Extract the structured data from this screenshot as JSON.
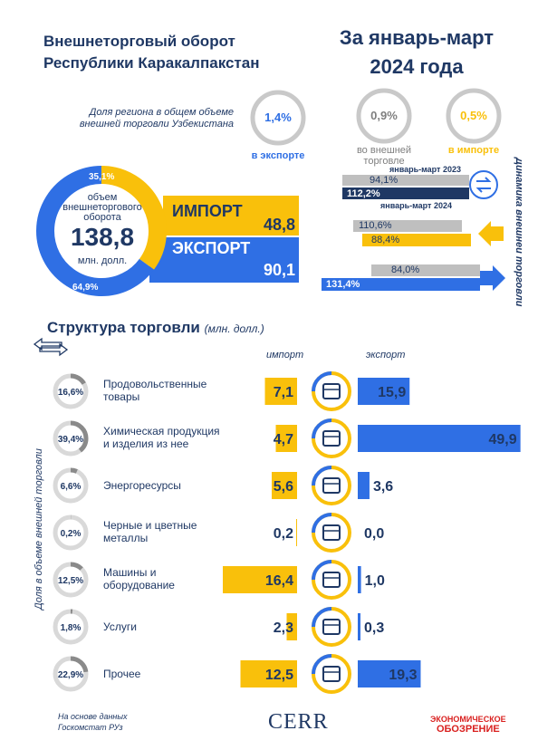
{
  "header": {
    "title_line1": "Внешнеторговый оборот",
    "title_line2": "Республики Каракалпакстан",
    "period_line1": "За январь-март",
    "period_line2": "2024 года"
  },
  "share": {
    "label_line1": "Доля региона в общем объеме",
    "label_line2": "внешней торговли Узбекистана",
    "export_value": "1,4%",
    "export_caption": "в экспорте",
    "trade_value": "0,9%",
    "trade_caption_line1": "во внешней",
    "trade_caption_line2": "торговле",
    "import_value": "0,5%",
    "import_caption": "в импорте"
  },
  "summary": {
    "donut_caption_line1": "объем",
    "donut_caption_line2": "внешнеторгового",
    "donut_caption_line3": "оборота",
    "total": "138,8",
    "unit": "млн. долл.",
    "import_share": "35,1%",
    "export_share": "64,9%",
    "import_label": "ИМПОРТ",
    "import_value": "48,8",
    "export_label": "ЭКСПОРТ",
    "export_value": "90,1"
  },
  "dynamics": {
    "vertical_label": "Динамика внешней торговли",
    "legend_2023": "январь-март 2023",
    "legend_2024": "январь-март 2024",
    "trade_2023": "94,1%",
    "trade_2024": "112,2%",
    "import_2023": "110,6%",
    "import_2024": "88,4%",
    "export_2023": "84,0%",
    "export_2024": "131,4%"
  },
  "structure": {
    "title": "Структура торговли",
    "unit": "(млн. долл.)",
    "col_import": "импорт",
    "col_export": "экспорт",
    "side_label": "Доля в объеме  внешней торговли"
  },
  "chart_data": {
    "type": "bar",
    "title": "Структура торговли",
    "unit": "млн. долл.",
    "categories": [
      {
        "line1": "Продовольственные",
        "line2": "товары",
        "share": "16,6%",
        "share_value": 16.6,
        "icon": "food-can-wheat-icon"
      },
      {
        "line1": "Химическая продукция",
        "line2": "и изделия из нее",
        "share": "39,4%",
        "share_value": 39.4,
        "icon": "flask-icon"
      },
      {
        "line1": "Энергоресурсы",
        "line2": "",
        "share": "6,6%",
        "share_value": 6.6,
        "icon": "oil-barrel-icon"
      },
      {
        "line1": "Черные и цветные",
        "line2": "металлы",
        "share": "0,2%",
        "share_value": 0.2,
        "icon": "steel-beam-icon"
      },
      {
        "line1": "Машины и",
        "line2": "оборудование",
        "share": "12,5%",
        "share_value": 12.5,
        "icon": "gears-icon"
      },
      {
        "line1": "Услуги",
        "line2": "",
        "share": "1,8%",
        "share_value": 1.8,
        "icon": "tools-icon"
      },
      {
        "line1": "Прочее",
        "line2": "",
        "share": "22,9%",
        "share_value": 22.9,
        "icon": "basket-icon"
      }
    ],
    "series": [
      {
        "name": "импорт",
        "values": [
          7.1,
          4.7,
          5.6,
          0.2,
          16.4,
          2.3,
          12.5
        ],
        "labels": [
          "7,1",
          "4,7",
          "5,6",
          "0,2",
          "16,4",
          "2,3",
          "12,5"
        ]
      },
      {
        "name": "экспорт",
        "values": [
          15.9,
          49.9,
          3.6,
          0.0,
          1.0,
          0.3,
          19.3
        ],
        "labels": [
          "15,9",
          "49,9",
          "3,6",
          "0,0",
          "1,0",
          "0,3",
          "19,3"
        ]
      }
    ]
  },
  "footer": {
    "source_line1": "На основе данных",
    "source_line2": "Госкомстат РУз",
    "logo_cerr": "CERR",
    "logo_eo_line1": "ЭКОНОМИЧЕСКОЕ",
    "logo_eo_line2": "ОБОЗРЕНИЕ"
  },
  "colors": {
    "navy": "#1f3864",
    "import": "#f9c00b",
    "export": "#2f6fe4",
    "grey": "#bfbfbf",
    "ring": "#8a8a8a",
    "red": "#d9201f"
  }
}
